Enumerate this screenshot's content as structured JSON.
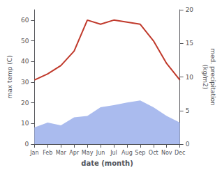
{
  "chart_data": {
    "type": "line",
    "xlabel": "date (month)",
    "ylabel": "max temp (C)",
    "y2label": "med. precipitation\n(kg/m2)",
    "categories": [
      "Jan",
      "Feb",
      "Mar",
      "Apr",
      "May",
      "Jun",
      "Jul",
      "Aug",
      "Sep",
      "Oct",
      "Nov",
      "Dec"
    ],
    "series": [
      {
        "type": "area",
        "axis": "y2",
        "color": "#aabbee",
        "values": [
          2.5,
          3.2,
          2.8,
          4.0,
          4.2,
          5.5,
          5.8,
          6.2,
          6.5,
          5.5,
          4.2,
          3.2
        ]
      },
      {
        "type": "line",
        "color": "#c0392b",
        "values": [
          31,
          34,
          38,
          45,
          60,
          58,
          60,
          59,
          58,
          50,
          39,
          31
        ]
      }
    ],
    "ylim": [
      0,
      65
    ],
    "yticks": [
      0,
      10,
      20,
      30,
      40,
      50,
      60
    ],
    "y2lim": [
      0,
      20
    ],
    "y2ticks": [
      0,
      5,
      10,
      15,
      20
    ],
    "grid": false
  }
}
